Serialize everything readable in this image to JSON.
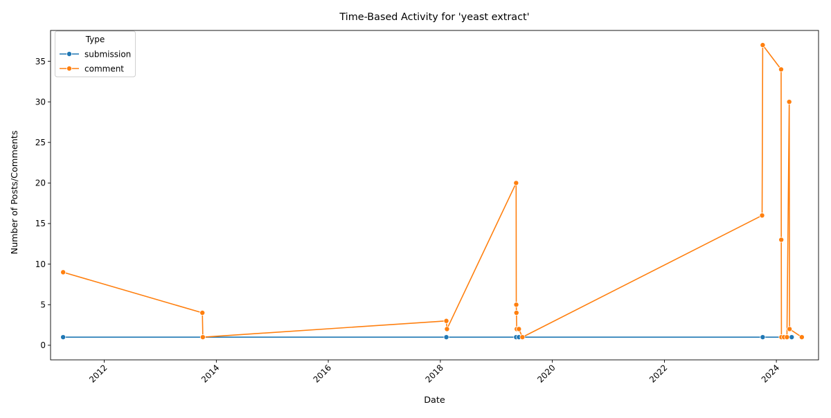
{
  "chart_data": {
    "type": "line",
    "title": "Time-Based Activity for 'yeast extract'",
    "xlabel": "Date",
    "ylabel": "Number of Posts/Comments",
    "xlim": [
      "2011-01-16",
      "2024-10-02"
    ],
    "ylim": [
      -1.8,
      38.8
    ],
    "x_ticks": [
      {
        "date": "2012-01-01",
        "label": "2012"
      },
      {
        "date": "2014-01-01",
        "label": "2014"
      },
      {
        "date": "2016-01-01",
        "label": "2016"
      },
      {
        "date": "2018-01-01",
        "label": "2018"
      },
      {
        "date": "2020-01-01",
        "label": "2020"
      },
      {
        "date": "2022-01-01",
        "label": "2022"
      },
      {
        "date": "2024-01-01",
        "label": "2024"
      }
    ],
    "y_ticks": [
      0,
      5,
      10,
      15,
      20,
      25,
      30,
      35
    ],
    "grid": false,
    "legend": {
      "title": "Type",
      "placement": "top-left"
    },
    "series": [
      {
        "name": "submission",
        "color": "#1f77b4",
        "points": [
          {
            "x": "2011-04-08",
            "y": 1
          },
          {
            "x": "2018-02-09",
            "y": 1
          },
          {
            "x": "2019-05-10",
            "y": 1
          },
          {
            "x": "2019-05-28",
            "y": 1
          },
          {
            "x": "2023-10-04",
            "y": 1
          },
          {
            "x": "2024-04-10",
            "y": 1
          }
        ]
      },
      {
        "name": "comment",
        "color": "#ff7f0e",
        "points": [
          {
            "x": "2011-04-08",
            "y": 9
          },
          {
            "x": "2013-10-02",
            "y": 4
          },
          {
            "x": "2013-10-05",
            "y": 1
          },
          {
            "x": "2018-02-09",
            "y": 3
          },
          {
            "x": "2018-02-13",
            "y": 2
          },
          {
            "x": "2019-05-10",
            "y": 20
          },
          {
            "x": "2019-05-11",
            "y": 5
          },
          {
            "x": "2019-05-12",
            "y": 4
          },
          {
            "x": "2019-05-14",
            "y": 2
          },
          {
            "x": "2019-05-28",
            "y": 2
          },
          {
            "x": "2019-06-20",
            "y": 1
          },
          {
            "x": "2023-09-30",
            "y": 16
          },
          {
            "x": "2023-10-04",
            "y": 37
          },
          {
            "x": "2024-02-01",
            "y": 34
          },
          {
            "x": "2024-02-02",
            "y": 13
          },
          {
            "x": "2024-02-03",
            "y": 1
          },
          {
            "x": "2024-02-20",
            "y": 1
          },
          {
            "x": "2024-03-10",
            "y": 1
          },
          {
            "x": "2024-03-25",
            "y": 30
          },
          {
            "x": "2024-03-27",
            "y": 2
          },
          {
            "x": "2024-06-15",
            "y": 1
          }
        ]
      }
    ]
  }
}
